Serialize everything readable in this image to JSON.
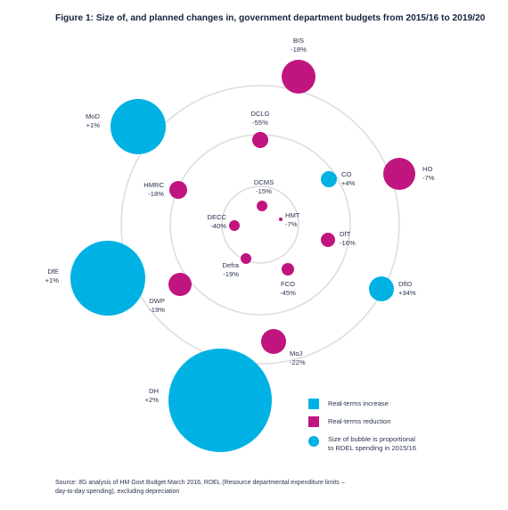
{
  "title": "Figure 1: Size of, and planned changes in, government department budgets from 2015/16 to 2019/20",
  "colors": {
    "increase": "#00b2e3",
    "reduction": "#c0157e",
    "ring": "#dcdcdc"
  },
  "chart_data": {
    "type": "bubble",
    "series": [
      {
        "name": "Real-terms increase",
        "points": [
          {
            "dept": "MoD",
            "change": "+1%"
          },
          {
            "dept": "DfE",
            "change": "+1%"
          },
          {
            "dept": "DH",
            "change": "+2%"
          },
          {
            "dept": "DfID",
            "change": "+34%"
          },
          {
            "dept": "CO",
            "change": "+4%"
          }
        ]
      },
      {
        "name": "Real-terms reduction",
        "points": [
          {
            "dept": "BIS",
            "change": "-18%"
          },
          {
            "dept": "HO",
            "change": "-7%"
          },
          {
            "dept": "MoJ",
            "change": "-22%"
          },
          {
            "dept": "DWP",
            "change": "-19%"
          },
          {
            "dept": "DCLG",
            "change": "-55%"
          },
          {
            "dept": "HMRC",
            "change": "-18%"
          },
          {
            "dept": "DfT",
            "change": "-16%"
          },
          {
            "dept": "FCO",
            "change": "-45%"
          },
          {
            "dept": "DCMS",
            "change": "-15%"
          },
          {
            "dept": "HMT",
            "change": "-7%"
          },
          {
            "dept": "DECC",
            "change": "-40%"
          },
          {
            "dept": "Defra",
            "change": "-19%"
          }
        ]
      }
    ]
  },
  "legend": {
    "increase": "Real-terms increase",
    "reduction": "Real-terms reduction",
    "size_line1": "Size of bubble is proportional",
    "size_line2": "to RDEL spending in 2015/16"
  },
  "source": {
    "line1": "Source: IfG analysis of HM Govt Budget March 2016, RDEL (Resource departmental expenditure limits –",
    "line2": "day-to-day spending), excluding depreciation"
  }
}
